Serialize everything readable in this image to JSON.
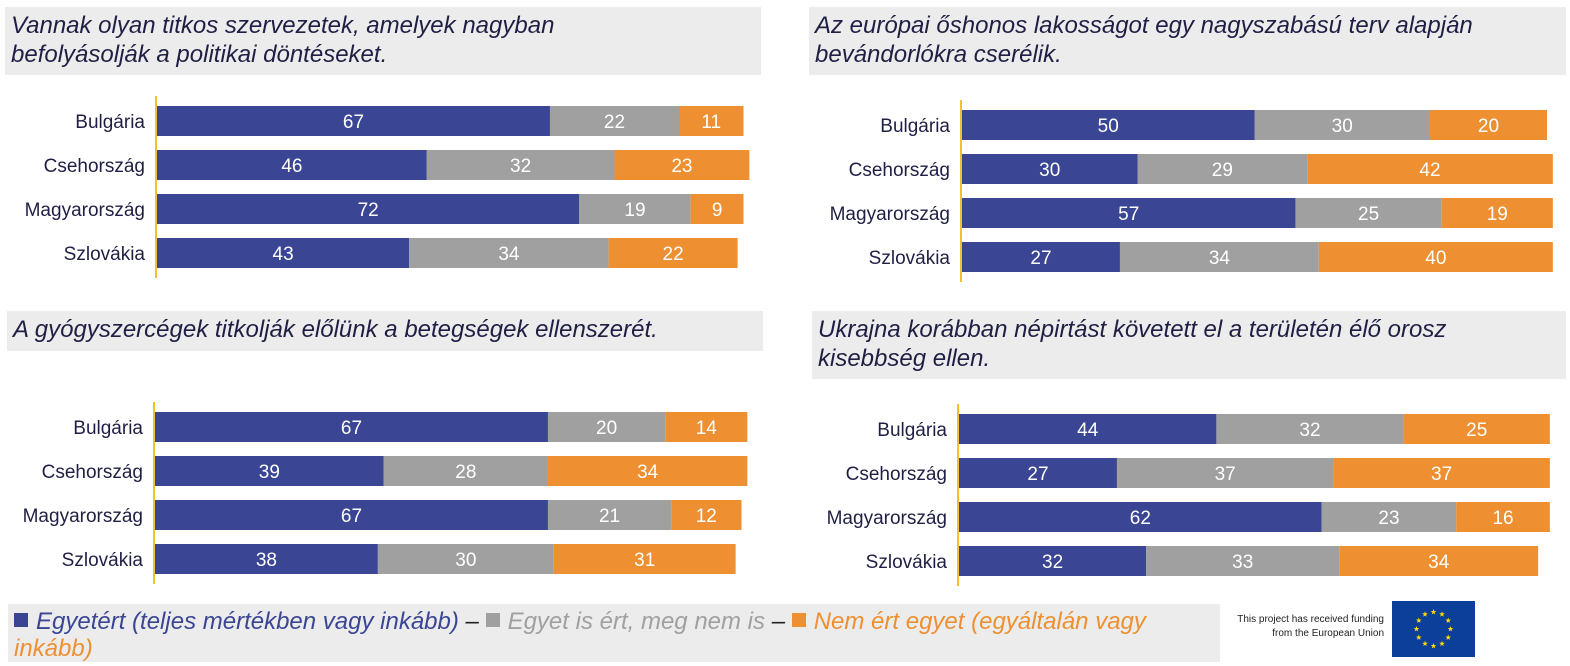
{
  "legend": {
    "agree": "Egyetért (teljes mértékben vagy inkább)",
    "sep1": "–",
    "neutral": "Egyet is ért, meg nem is",
    "sep2": "–",
    "disagree_line1": "Nem ért egyet (egyáltalán vagy",
    "disagree_line2": "inkább)"
  },
  "colors": {
    "agree": "#3a4594",
    "neutral": "#a0a0a0",
    "disagree": "#ee9032",
    "axis": "#f2c12e",
    "title_bg": "#ececec",
    "eu_blue": "#0b3f9a",
    "eu_star": "#ffdd00"
  },
  "eu": {
    "line1": "This project has received funding",
    "line2": "from the European Union",
    "flag_icon": "eu-flag-icon"
  },
  "chart_data": [
    {
      "type": "bar",
      "orientation": "horizontal",
      "stacked": true,
      "title_lines": [
        "Vannak olyan titkos szervezetek, amelyek nagyban",
        "befolyásolják a politikai döntéseket."
      ],
      "categories": [
        "Bulgária",
        "Csehország",
        "Magyarország",
        "Szlovákia"
      ],
      "series": [
        {
          "key": "agree",
          "values": [
            67,
            46,
            72,
            43
          ]
        },
        {
          "key": "neutral",
          "values": [
            22,
            32,
            19,
            34
          ]
        },
        {
          "key": "disagree",
          "values": [
            11,
            23,
            9,
            22
          ]
        }
      ]
    },
    {
      "type": "bar",
      "orientation": "horizontal",
      "stacked": true,
      "title_lines": [
        "Az európai őshonos lakosságot egy nagyszabású terv alapján",
        "bevándorlókra cserélik."
      ],
      "categories": [
        "Bulgária",
        "Csehország",
        "Magyarország",
        "Szlovákia"
      ],
      "series": [
        {
          "key": "agree",
          "values": [
            50,
            30,
            57,
            27
          ]
        },
        {
          "key": "neutral",
          "values": [
            30,
            29,
            25,
            34
          ]
        },
        {
          "key": "disagree",
          "values": [
            20,
            42,
            19,
            40
          ]
        }
      ]
    },
    {
      "type": "bar",
      "orientation": "horizontal",
      "stacked": true,
      "title_lines": [
        "A gyógyszercégek titkolják előlünk a betegségek ellenszerét."
      ],
      "categories": [
        "Bulgária",
        "Csehország",
        "Magyarország",
        "Szlovákia"
      ],
      "series": [
        {
          "key": "agree",
          "values": [
            67,
            39,
            67,
            38
          ]
        },
        {
          "key": "neutral",
          "values": [
            20,
            28,
            21,
            30
          ]
        },
        {
          "key": "disagree",
          "values": [
            14,
            34,
            12,
            31
          ]
        }
      ]
    },
    {
      "type": "bar",
      "orientation": "horizontal",
      "stacked": true,
      "title_lines": [
        "Ukrajna korábban népirtást követett el a területén élő orosz",
        "kisebbség ellen."
      ],
      "categories": [
        "Bulgária",
        "Csehország",
        "Magyarország",
        "Szlovákia"
      ],
      "series": [
        {
          "key": "agree",
          "values": [
            44,
            27,
            62,
            32
          ]
        },
        {
          "key": "neutral",
          "values": [
            32,
            37,
            23,
            33
          ]
        },
        {
          "key": "disagree",
          "values": [
            25,
            37,
            16,
            34
          ]
        }
      ]
    }
  ]
}
